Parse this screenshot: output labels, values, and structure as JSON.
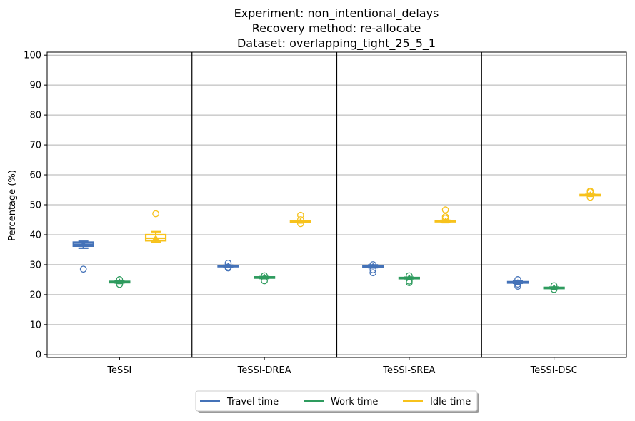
{
  "chart_data": {
    "type": "box",
    "title_lines": [
      "Experiment: non_intentional_delays",
      "Recovery method: re-allocate",
      "Dataset: overlapping_tight_25_5_1"
    ],
    "ylabel": "Percentage (%)",
    "xlabel": "",
    "ylim": [
      0,
      100
    ],
    "yticks": [
      0,
      10,
      20,
      30,
      40,
      50,
      60,
      70,
      80,
      90,
      100
    ],
    "grid": "y",
    "categories": [
      "TeSSI",
      "TeSSI-DREA",
      "TeSSI-SREA",
      "TeSSI-DSC"
    ],
    "series": [
      {
        "name": "Travel time",
        "color": "#4472b8",
        "boxes": [
          {
            "whisker_low": 35.5,
            "q1": 36.2,
            "median": 36.8,
            "q3": 37.5,
            "whisker_high": 37.8,
            "outliers": [
              28.5
            ]
          },
          {
            "whisker_low": 29.3,
            "q1": 29.4,
            "median": 29.5,
            "q3": 29.7,
            "whisker_high": 29.8,
            "outliers": [
              28.9,
              29.2,
              30.5
            ]
          },
          {
            "whisker_low": 29.0,
            "q1": 29.2,
            "median": 29.4,
            "q3": 29.7,
            "whisker_high": 29.9,
            "outliers": [
              27.3,
              28.3,
              30.0
            ]
          },
          {
            "whisker_low": 23.8,
            "q1": 23.9,
            "median": 24.0,
            "q3": 24.3,
            "whisker_high": 24.5,
            "outliers": [
              22.8,
              23.5,
              25.0
            ]
          }
        ]
      },
      {
        "name": "Work time",
        "color": "#2e9b5e",
        "boxes": [
          {
            "whisker_low": 23.9,
            "q1": 24.0,
            "median": 24.2,
            "q3": 24.4,
            "whisker_high": 24.6,
            "outliers": [
              23.4,
              25.0
            ]
          },
          {
            "whisker_low": 25.4,
            "q1": 25.6,
            "median": 25.8,
            "q3": 25.9,
            "whisker_high": 26.0,
            "outliers": [
              24.6,
              26.3
            ]
          },
          {
            "whisker_low": 25.3,
            "q1": 25.4,
            "median": 25.6,
            "q3": 25.7,
            "whisker_high": 25.8,
            "outliers": [
              24.0,
              24.5,
              26.3
            ]
          },
          {
            "whisker_low": 22.1,
            "q1": 22.2,
            "median": 22.3,
            "q3": 22.4,
            "whisker_high": 22.5,
            "outliers": [
              21.7,
              23.0
            ]
          }
        ]
      },
      {
        "name": "Idle time",
        "color": "#f7c21c",
        "boxes": [
          {
            "whisker_low": 37.5,
            "q1": 38.0,
            "median": 38.8,
            "q3": 40.0,
            "whisker_high": 41.0,
            "outliers": [
              47.0
            ]
          },
          {
            "whisker_low": 44.2,
            "q1": 44.3,
            "median": 44.4,
            "q3": 44.6,
            "whisker_high": 44.7,
            "outliers": [
              43.7,
              45.0,
              46.5
            ]
          },
          {
            "whisker_low": 44.3,
            "q1": 44.4,
            "median": 44.5,
            "q3": 44.7,
            "whisker_high": 44.8,
            "outliers": [
              45.5,
              46.0,
              48.3
            ]
          },
          {
            "whisker_low": 53.1,
            "q1": 53.2,
            "median": 53.3,
            "q3": 53.4,
            "whisker_high": 53.5,
            "outliers": [
              52.5,
              54.3,
              54.6
            ]
          }
        ]
      }
    ],
    "legend": {
      "placement": "bottom-center",
      "entries": [
        "Travel time",
        "Work time",
        "Idle time"
      ]
    }
  }
}
